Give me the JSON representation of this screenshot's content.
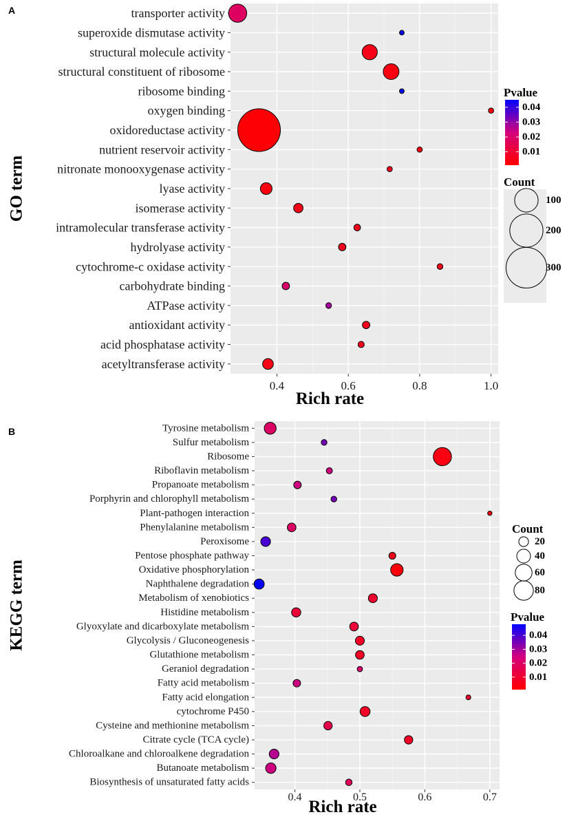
{
  "chart_data": [
    {
      "panel_label": "A",
      "type": "scatter",
      "subtype": "bubble",
      "xlabel": "Rich rate",
      "ylabel": "GO term",
      "xlim": [
        0.27,
        1.02
      ],
      "x_ticks": [
        "0.4",
        "0.6",
        "0.8",
        "1.0"
      ],
      "x_tick_values": [
        0.4,
        0.6,
        0.8,
        1.0
      ],
      "legend_pvalue": {
        "title": "Pvalue",
        "labels": [
          "0.04",
          "0.03",
          "0.02",
          "0.01"
        ],
        "values": [
          0.04,
          0.03,
          0.02,
          0.01
        ],
        "low_color": "#ff0000",
        "high_color": "#0000ff",
        "range": [
          0.001,
          0.045
        ]
      },
      "legend_count": {
        "title": "Count",
        "labels": [
          "100",
          "200",
          "300"
        ],
        "values": [
          100,
          200,
          300
        ]
      },
      "count_max": 330,
      "terms": [
        "transporter activity",
        "superoxide dismutase activity",
        "structural molecule activity",
        "structural constituent of ribosome",
        "ribosome binding",
        "oxygen binding",
        "oxidoreductase activity",
        "nutrient reservoir activity",
        "nitronate monooxygenase activity",
        "lyase activity",
        "isomerase activity",
        "intramolecular transferase activity",
        "hydrolyase activity",
        "cytochrome-c oxidase activity",
        "carbohydrate binding",
        "ATPase activity",
        "antioxidant activity",
        "acid phosphatase activity",
        "acetyltransferase activity"
      ],
      "rich_rate": [
        0.29,
        0.75,
        0.66,
        0.72,
        0.75,
        1.0,
        0.35,
        0.8,
        0.716,
        0.37,
        0.46,
        0.625,
        0.583,
        0.857,
        0.425,
        0.545,
        0.65,
        0.636,
        0.375
      ],
      "count": [
        60,
        4,
        42,
        45,
        4,
        5,
        330,
        5,
        5,
        25,
        16,
        8,
        10,
        6,
        10,
        6,
        10,
        7,
        21
      ],
      "pvalue": [
        0.018,
        0.045,
        0.005,
        0.004,
        0.045,
        0.003,
        0.002,
        0.004,
        0.006,
        0.004,
        0.005,
        0.006,
        0.006,
        0.005,
        0.02,
        0.028,
        0.006,
        0.006,
        0.005
      ]
    },
    {
      "panel_label": "B",
      "type": "scatter",
      "subtype": "bubble",
      "xlabel": "Rich rate",
      "ylabel": "KEGG term",
      "xlim": [
        0.338,
        0.715
      ],
      "x_ticks": [
        "0.4",
        "0.5",
        "0.6",
        "0.7"
      ],
      "x_tick_values": [
        0.4,
        0.5,
        0.6,
        0.7
      ],
      "legend_count": {
        "title": "Count",
        "labels": [
          "20",
          "40",
          "60",
          "80"
        ],
        "values": [
          20,
          40,
          60,
          80
        ]
      },
      "legend_pvalue": {
        "title": "Pvalue",
        "labels": [
          "0.04",
          "0.03",
          "0.02",
          "0.01"
        ],
        "values": [
          0.04,
          0.03,
          0.02,
          0.01
        ],
        "low_color": "#ff0000",
        "high_color": "#0000ff",
        "range": [
          0.001,
          0.048
        ]
      },
      "count_max": 90,
      "terms": [
        "Tyrosine metabolism",
        "Sulfur metabolism",
        "Ribosome",
        "Riboflavin metabolism",
        "Propanoate metabolism",
        "Porphyrin and chlorophyll metabolism",
        "Plant-pathogen interaction",
        "Phenylalanine metabolism",
        "Peroxisome",
        "Pentose phosphate pathway",
        "Oxidative phosphorylation",
        "Naphthalene degradation",
        "Metabolism of xenobiotics",
        "Histidine metabolism",
        "Glyoxylate and dicarboxylate metabolism",
        "Glycolysis / Gluconeogenesis",
        "Glutathione metabolism",
        "Geraniol degradation",
        "Fatty acid metabolism",
        "Fatty acid elongation",
        "cytochrome P450",
        "Cysteine and methionine metabolism",
        "Citrate cycle (TCA cycle)",
        "Chloroalkane and chloroalkene degradation",
        "Butanoate metabolism",
        "Biosynthesis of unsaturated fatty acids"
      ],
      "rich_rate": [
        0.362,
        0.445,
        0.627,
        0.453,
        0.404,
        0.46,
        0.7,
        0.395,
        0.355,
        0.55,
        0.557,
        0.345,
        0.52,
        0.402,
        0.491,
        0.5,
        0.5,
        0.5,
        0.403,
        0.667,
        0.508,
        0.451,
        0.575,
        0.368,
        0.363,
        0.483
      ],
      "count": [
        30,
        7,
        70,
        8,
        12,
        7,
        4,
        16,
        20,
        10,
        33,
        22,
        17,
        18,
        16,
        17,
        16,
        6,
        12,
        5,
        21,
        15,
        15,
        20,
        23,
        9
      ],
      "pvalue": [
        0.02,
        0.035,
        0.004,
        0.025,
        0.025,
        0.035,
        0.005,
        0.02,
        0.04,
        0.006,
        0.003,
        0.048,
        0.01,
        0.012,
        0.012,
        0.008,
        0.008,
        0.022,
        0.025,
        0.01,
        0.008,
        0.015,
        0.008,
        0.028,
        0.025,
        0.018
      ]
    }
  ]
}
